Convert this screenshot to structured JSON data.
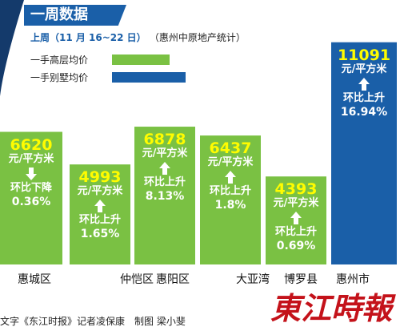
{
  "header": {
    "title": "一周数据"
  },
  "period": {
    "label": "上周（11 月 16~22 日）",
    "source": "（惠州中原地产统计）"
  },
  "legend": {
    "high_rise": "一手高层均价",
    "villa": "一手别墅均价"
  },
  "colors": {
    "high_rise": "#7ac143",
    "villa": "#1a5fa8",
    "value_text": "#fffc00"
  },
  "chart_data": {
    "type": "bar",
    "title": "一周数据",
    "unit": "元/平方米",
    "categories": [
      "惠城区",
      "仲恺区",
      "惠阳区",
      "大亚湾",
      "博罗县",
      "惠州市"
    ],
    "series": [
      {
        "name": "一手高层均价",
        "values": [
          6620,
          4993,
          6878,
          6437,
          4393,
          null
        ],
        "changes": [
          {
            "direction": "down",
            "label": "环比下降",
            "pct": "0.36%"
          },
          {
            "direction": "up",
            "label": "环比上升",
            "pct": "1.65%"
          },
          {
            "direction": "up",
            "label": "环比上升",
            "pct": "8.13%"
          },
          {
            "direction": "up",
            "label": "环比上升",
            "pct": "1.8%"
          },
          {
            "direction": "up",
            "label": "环比上升",
            "pct": "0.69%"
          },
          null
        ]
      },
      {
        "name": "一手别墅均价",
        "values": [
          null,
          null,
          null,
          null,
          null,
          11091
        ],
        "changes": [
          null,
          null,
          null,
          null,
          null,
          {
            "direction": "up",
            "label": "环比上升",
            "pct": "16.94%"
          }
        ]
      }
    ],
    "value_labels": [
      "6620",
      "4993",
      "6878",
      "6437",
      "4393",
      "11091"
    ],
    "ylim": [
      0,
      12000
    ]
  },
  "credit": "文字《东江时报》记者凌保康　制图 梁小斐",
  "logo_text": "東江時報"
}
